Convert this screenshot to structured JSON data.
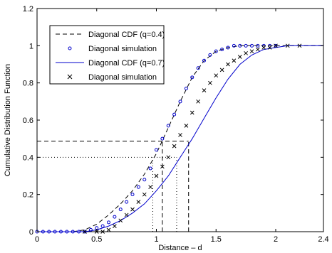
{
  "chart_data": {
    "type": "line",
    "title": "",
    "xlabel": "Distance – d",
    "ylabel": "Cumulative Distribution Function",
    "xlim": [
      0,
      2.4
    ],
    "ylim": [
      0,
      1.2
    ],
    "x_ticks": [
      "0",
      "0.5",
      "1",
      "1.5",
      "2",
      "2.4"
    ],
    "x_tick_values": [
      0,
      0.5,
      1,
      1.5,
      2,
      2.4
    ],
    "y_ticks": [
      "0",
      "0.2",
      "0.4",
      "0.6",
      "0.8",
      "1",
      "1.2"
    ],
    "y_tick_values": [
      0,
      0.2,
      0.4,
      0.6,
      0.8,
      1.0,
      1.2
    ],
    "grid": false,
    "legend_position": "top-left",
    "series": [
      {
        "name": "Diagonal CDF (q=0.4)",
        "style": "dashed-line",
        "color": "#000000",
        "x": [
          0,
          0.3,
          0.4,
          0.5,
          0.6,
          0.7,
          0.8,
          0.9,
          1.0,
          1.1,
          1.2,
          1.3,
          1.4,
          1.5,
          1.6,
          1.7,
          1.8,
          1.9,
          2.0,
          2.4
        ],
        "y": [
          0,
          0.0,
          0.01,
          0.04,
          0.09,
          0.15,
          0.22,
          0.31,
          0.42,
          0.56,
          0.7,
          0.83,
          0.92,
          0.97,
          0.99,
          1.0,
          1.0,
          1.0,
          1.0,
          1.0
        ]
      },
      {
        "name": "Diagonal simulation",
        "style": "circle-markers",
        "color": "#0000cc",
        "x": [
          0,
          0.05,
          0.1,
          0.15,
          0.2,
          0.25,
          0.3,
          0.35,
          0.4,
          0.45,
          0.5,
          0.55,
          0.6,
          0.65,
          0.7,
          0.75,
          0.8,
          0.85,
          0.9,
          0.95,
          1.0,
          1.05,
          1.1,
          1.15,
          1.2,
          1.25,
          1.3,
          1.35,
          1.4,
          1.45,
          1.5,
          1.55,
          1.6,
          1.65,
          1.7,
          1.75,
          1.8,
          1.85,
          1.9,
          1.95,
          2.0
        ],
        "y": [
          0,
          0,
          0,
          0,
          0,
          0,
          0,
          0,
          0,
          0.01,
          0.02,
          0.03,
          0.05,
          0.08,
          0.12,
          0.16,
          0.2,
          0.24,
          0.28,
          0.34,
          0.44,
          0.5,
          0.57,
          0.63,
          0.7,
          0.77,
          0.83,
          0.88,
          0.92,
          0.95,
          0.97,
          0.98,
          0.99,
          1.0,
          1.0,
          1.0,
          1.0,
          1.0,
          1.0,
          1.0,
          1.0
        ]
      },
      {
        "name": "Diagonal CDF (q=0.7)",
        "style": "solid-line",
        "color": "#0000cc",
        "x": [
          0,
          0.4,
          0.5,
          0.6,
          0.7,
          0.8,
          0.9,
          1.0,
          1.1,
          1.2,
          1.3,
          1.4,
          1.5,
          1.6,
          1.7,
          1.8,
          1.9,
          2.0,
          2.1,
          2.2,
          2.4
        ],
        "y": [
          0,
          0.0,
          0.01,
          0.03,
          0.06,
          0.1,
          0.15,
          0.22,
          0.3,
          0.4,
          0.5,
          0.61,
          0.72,
          0.82,
          0.9,
          0.95,
          0.98,
          0.99,
          1.0,
          1.0,
          1.0
        ]
      },
      {
        "name": "Diagonal simulation",
        "style": "x-markers",
        "color": "#000000",
        "x": [
          0.4,
          0.5,
          0.55,
          0.6,
          0.65,
          0.7,
          0.75,
          0.8,
          0.85,
          0.9,
          0.95,
          1.0,
          1.05,
          1.1,
          1.15,
          1.2,
          1.25,
          1.3,
          1.35,
          1.4,
          1.45,
          1.5,
          1.55,
          1.6,
          1.65,
          1.7,
          1.75,
          1.8,
          1.85,
          1.9,
          1.95,
          2.0,
          2.1,
          2.2
        ],
        "y": [
          0,
          0,
          0.0,
          0.01,
          0.03,
          0.06,
          0.09,
          0.12,
          0.16,
          0.2,
          0.24,
          0.3,
          0.35,
          0.4,
          0.46,
          0.52,
          0.57,
          0.64,
          0.7,
          0.76,
          0.8,
          0.84,
          0.87,
          0.9,
          0.92,
          0.94,
          0.96,
          0.97,
          0.98,
          0.99,
          0.99,
          1.0,
          1.0,
          1.0
        ]
      }
    ],
    "reference_lines": [
      {
        "style": "dashed",
        "y": 0.487,
        "x_from": 0,
        "x_to": 1.27
      },
      {
        "style": "dashed",
        "x": 1.05,
        "y_from": 0,
        "y_to": 0.487
      },
      {
        "style": "dashed",
        "x": 1.27,
        "y_from": 0,
        "y_to": 0.487
      },
      {
        "style": "dotted",
        "y": 0.4,
        "x_from": 0,
        "x_to": 1.17
      },
      {
        "style": "dotted",
        "x": 0.97,
        "y_from": 0,
        "y_to": 0.4
      },
      {
        "style": "dotted",
        "x": 1.17,
        "y_from": 0,
        "y_to": 0.4
      }
    ]
  }
}
